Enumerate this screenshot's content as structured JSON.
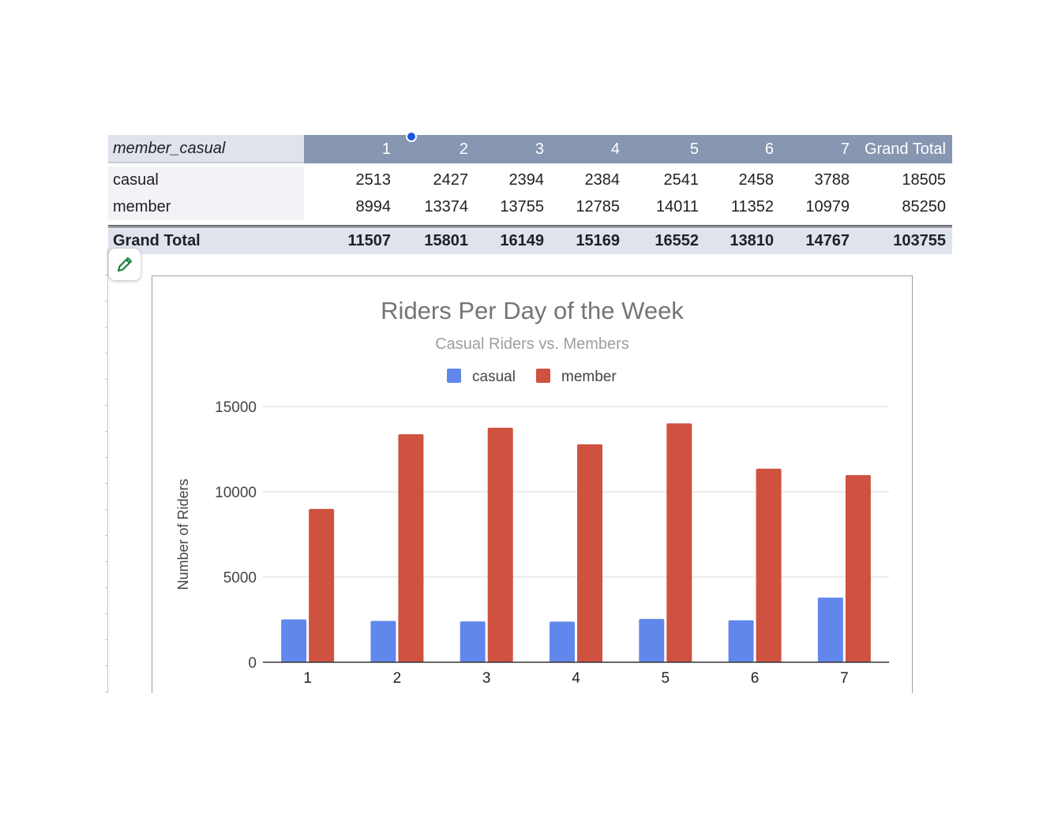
{
  "pivot": {
    "header": {
      "label": "member_casual",
      "columns": [
        "1",
        "2",
        "3",
        "4",
        "5",
        "6",
        "7",
        "Grand Total"
      ]
    },
    "rows": [
      {
        "label": "casual",
        "values": [
          "2513",
          "2427",
          "2394",
          "2384",
          "2541",
          "2458",
          "3788",
          "18505"
        ]
      },
      {
        "label": "member",
        "values": [
          "8994",
          "13374",
          "13755",
          "12785",
          "14011",
          "11352",
          "10979",
          "85250"
        ]
      }
    ],
    "total": {
      "label": "Grand Total",
      "values": [
        "11507",
        "15801",
        "16149",
        "15169",
        "16552",
        "13810",
        "14767",
        "103755"
      ]
    }
  },
  "edit_icon": "pencil-icon",
  "colors": {
    "casual": "#6287ec",
    "member": "#cf5140",
    "header": "#8796b1"
  },
  "chart_data": {
    "type": "bar",
    "title": "Riders Per Day of the Week",
    "subtitle": "Casual Riders vs. Members",
    "xlabel": "",
    "ylabel": "Number of Riders",
    "categories": [
      "1",
      "2",
      "3",
      "4",
      "5",
      "6",
      "7"
    ],
    "series": [
      {
        "name": "casual",
        "color": "#6287ec",
        "values": [
          2513,
          2427,
          2394,
          2384,
          2541,
          2458,
          3788
        ]
      },
      {
        "name": "member",
        "color": "#cf5140",
        "values": [
          8994,
          13374,
          13755,
          12785,
          14011,
          11352,
          10979
        ]
      }
    ],
    "ylim": [
      0,
      15000
    ],
    "yticks": [
      0,
      5000,
      10000,
      15000
    ],
    "grid": true,
    "legend": "top-center"
  }
}
